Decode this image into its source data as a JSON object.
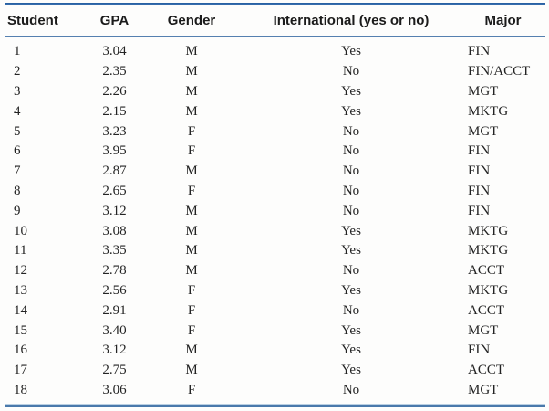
{
  "table": {
    "columns": [
      {
        "key": "student",
        "label": "Student"
      },
      {
        "key": "gpa",
        "label": "GPA"
      },
      {
        "key": "gender",
        "label": "Gender"
      },
      {
        "key": "intl",
        "label": "International (yes or no)"
      },
      {
        "key": "major",
        "label": "Major"
      }
    ],
    "rows": [
      [
        "1",
        "3.04",
        "M",
        "Yes",
        "FIN"
      ],
      [
        "2",
        "2.35",
        "M",
        "No",
        "FIN/ACCT"
      ],
      [
        "3",
        "2.26",
        "M",
        "Yes",
        "MGT"
      ],
      [
        "4",
        "2.15",
        "M",
        "Yes",
        "MKTG"
      ],
      [
        "5",
        "3.23",
        "F",
        "No",
        "MGT"
      ],
      [
        "6",
        "3.95",
        "F",
        "No",
        "FIN"
      ],
      [
        "7",
        "2.87",
        "M",
        "No",
        "FIN"
      ],
      [
        "8",
        "2.65",
        "F",
        "No",
        "FIN"
      ],
      [
        "9",
        "3.12",
        "M",
        "No",
        "FIN"
      ],
      [
        "10",
        "3.08",
        "M",
        "Yes",
        "MKTG"
      ],
      [
        "11",
        "3.35",
        "M",
        "Yes",
        "MKTG"
      ],
      [
        "12",
        "2.78",
        "M",
        "No",
        "ACCT"
      ],
      [
        "13",
        "2.56",
        "F",
        "Yes",
        "MKTG"
      ],
      [
        "14",
        "2.91",
        "F",
        "No",
        "ACCT"
      ],
      [
        "15",
        "3.40",
        "F",
        "Yes",
        "MGT"
      ],
      [
        "16",
        "3.12",
        "M",
        "Yes",
        "FIN"
      ],
      [
        "17",
        "2.75",
        "M",
        "Yes",
        "ACCT"
      ],
      [
        "18",
        "3.06",
        "F",
        "No",
        "MGT"
      ]
    ]
  },
  "colors": {
    "top_border": "#215c9f",
    "header_rule": "#5580b0",
    "bottom_border": "#4a79ab",
    "header_text": "#1b1b1b",
    "body_text": "#232323"
  }
}
